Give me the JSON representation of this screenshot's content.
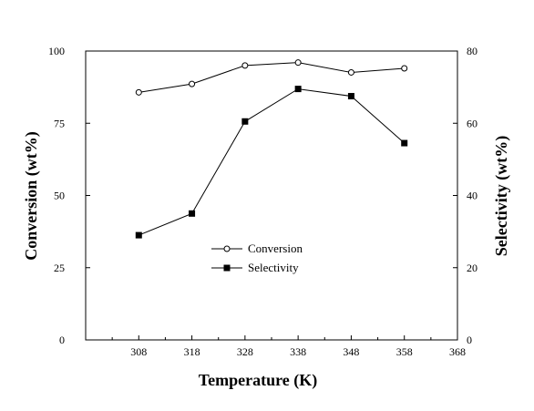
{
  "chart_data": {
    "type": "line",
    "x": [
      308,
      318,
      328,
      338,
      348,
      358
    ],
    "series": [
      {
        "name": "Conversion",
        "axis": "left",
        "marker": "open-circle",
        "values": [
          85.7,
          88.6,
          95.0,
          96.0,
          92.6,
          94.0
        ]
      },
      {
        "name": "Selectivity",
        "axis": "right",
        "marker": "filled-square",
        "values": [
          29.0,
          35.0,
          60.5,
          69.5,
          67.5,
          54.5
        ]
      }
    ],
    "xlabel": "Temperature (K)",
    "ylabel": "Conversion (wt%)",
    "y2label": "Selectivity (wt%)",
    "xlim": [
      298,
      368
    ],
    "ylim": [
      0,
      100
    ],
    "y2lim": [
      0,
      80
    ],
    "xticks": [
      308,
      318,
      328,
      338,
      348,
      358,
      368
    ],
    "yticks": [
      0,
      25,
      50,
      75,
      100
    ],
    "y2ticks": [
      0,
      20,
      40,
      60,
      80
    ],
    "grid": false,
    "legend_position": "center"
  }
}
